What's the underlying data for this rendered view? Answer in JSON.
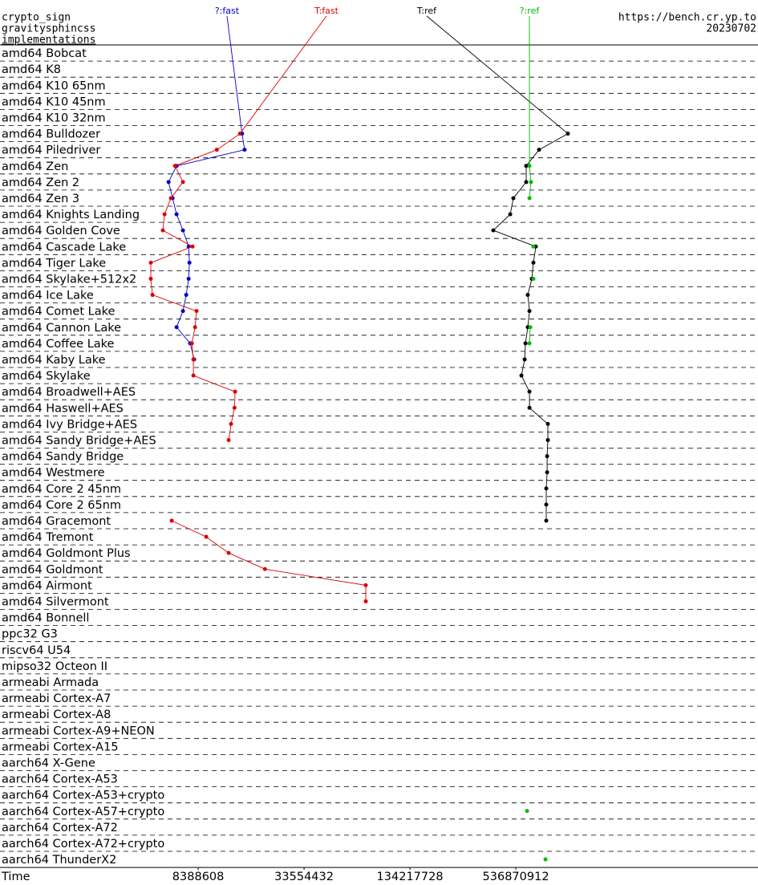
{
  "chart_data": {
    "type": "line",
    "title": "crypto_sign",
    "subtitle": "gravitysphincss",
    "y_label": "implementations",
    "source": "https://bench.cr.yp.to",
    "date": "20230702",
    "x_label": "Time",
    "x_scale": "log",
    "xlim": [
      626000,
      12800000000
    ],
    "xticks": [
      8388608,
      33554432,
      134217728,
      536870912
    ],
    "categories": [
      "amd64 Bobcat",
      "amd64 K8",
      "amd64 K10 65nm",
      "amd64 K10 45nm",
      "amd64 K10 32nm",
      "amd64 Bulldozer",
      "amd64 Piledriver",
      "amd64 Zen",
      "amd64 Zen 2",
      "amd64 Zen 3",
      "amd64 Knights Landing",
      "amd64 Golden Cove",
      "amd64 Cascade Lake",
      "amd64 Tiger Lake",
      "amd64 Skylake+512x2",
      "amd64 Ice Lake",
      "amd64 Comet Lake",
      "amd64 Cannon Lake",
      "amd64 Coffee Lake",
      "amd64 Kaby Lake",
      "amd64 Skylake",
      "amd64 Broadwell+AES",
      "amd64 Haswell+AES",
      "amd64 Ivy Bridge+AES",
      "amd64 Sandy Bridge+AES",
      "amd64 Sandy Bridge",
      "amd64 Westmere",
      "amd64 Core 2 45nm",
      "amd64 Core 2 65nm",
      "amd64 Gracemont",
      "amd64 Tremont",
      "amd64 Goldmont Plus",
      "amd64 Goldmont",
      "amd64 Airmont",
      "amd64 Silvermont",
      "amd64 Bonnell",
      "ppc32 G3",
      "riscv64 U54",
      "mipso32 Octeon II",
      "armeabi Armada",
      "armeabi Cortex-A7",
      "armeabi Cortex-A8",
      "armeabi Cortex-A9+NEON",
      "armeabi Cortex-A15",
      "aarch64 X-Gene",
      "aarch64 Cortex-A53",
      "aarch64 Cortex-A53+crypto",
      "aarch64 Cortex-A57+crypto",
      "aarch64 Cortex-A72",
      "aarch64 Cortex-A72+crypto",
      "aarch64 ThunderX2"
    ],
    "series": [
      {
        "name": "?:fast",
        "color": "#0000cc",
        "values": [
          null,
          null,
          null,
          null,
          null,
          14900000,
          15400000,
          6320000,
          5690000,
          6000000,
          6320000,
          6870000,
          7400000,
          7480000,
          7400000,
          7170000,
          6870000,
          6320000,
          7550000,
          7960000,
          null,
          null,
          null,
          null,
          null,
          null,
          null,
          null,
          null,
          null,
          null,
          null,
          null,
          null,
          null,
          null,
          null,
          null,
          null,
          null,
          null,
          null,
          null,
          null,
          null,
          null,
          null,
          null,
          null,
          null,
          null
        ]
      },
      {
        "name": "T:fast",
        "color": "#dd0000",
        "values": [
          null,
          null,
          null,
          null,
          null,
          14500000,
          10700000,
          6190000,
          6870000,
          5870000,
          5400000,
          5280000,
          7790000,
          4510000,
          4510000,
          4610000,
          8210000,
          8050000,
          7720000,
          7880000,
          7880000,
          13600000,
          13500000,
          12900000,
          12500000,
          null,
          null,
          null,
          null,
          5930000,
          9320000,
          12500000,
          20100000,
          75300000,
          75300000,
          null,
          null,
          null,
          null,
          null,
          null,
          null,
          null,
          null,
          null,
          null,
          null,
          null,
          null,
          null,
          null
        ]
      },
      {
        "name": "T:ref",
        "color": "#000000",
        "values": [
          null,
          null,
          null,
          null,
          null,
          1062000000,
          728000000,
          615000000,
          615000000,
          520000000,
          499000000,
          400000000,
          698000000,
          676000000,
          662000000,
          628000000,
          642000000,
          628000000,
          609000000,
          603000000,
          578000000,
          642000000,
          642000000,
          817000000,
          817000000,
          809000000,
          809000000,
          800000000,
          800000000,
          800000000,
          null,
          null,
          null,
          null,
          null,
          null,
          null,
          null,
          null,
          null,
          null,
          null,
          null,
          null,
          null,
          null,
          null,
          null,
          null,
          null,
          null
        ]
      },
      {
        "name": "?:ref",
        "color": "#00bb00",
        "values": [
          null,
          null,
          null,
          null,
          null,
          null,
          null,
          642000000,
          655000000,
          642000000,
          null,
          null,
          676000000,
          null,
          676000000,
          null,
          null,
          649000000,
          642000000,
          null,
          null,
          null,
          null,
          null,
          null,
          null,
          null,
          null,
          null,
          null,
          null,
          null,
          null,
          null,
          null,
          null,
          null,
          null,
          null,
          null,
          null,
          null,
          null,
          null,
          null,
          null,
          null,
          622000000,
          null,
          null,
          792000000
        ]
      }
    ]
  }
}
